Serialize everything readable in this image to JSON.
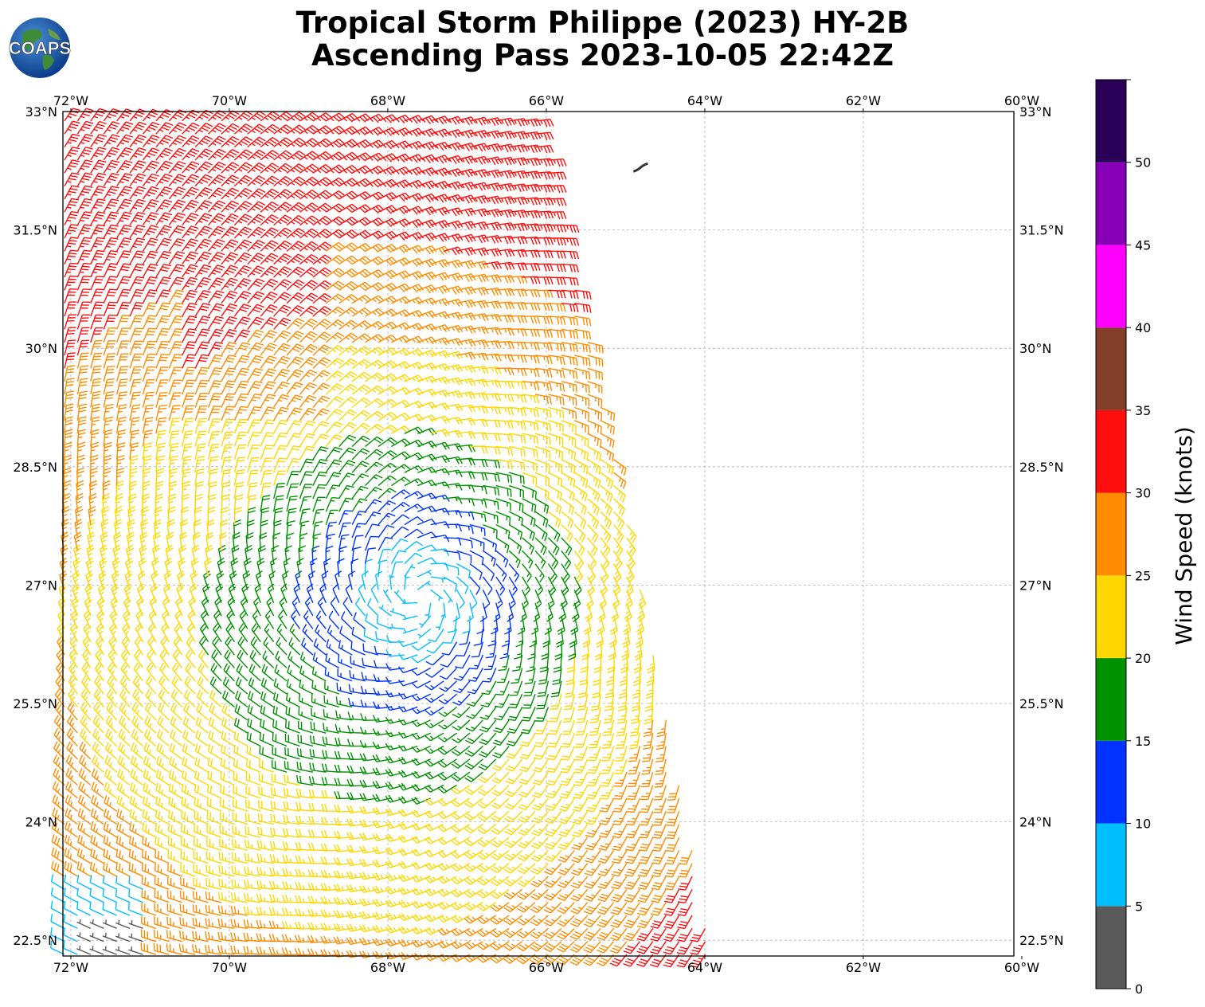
{
  "header": {
    "title_line1": "Tropical Storm Philippe (2023) HY-2B",
    "title_line2": "Ascending Pass 2023-10-05 22:42Z",
    "logo_text": "COAPS"
  },
  "map": {
    "lon_range": [
      -72.1,
      -60.1
    ],
    "lat_range": [
      22.3,
      33.0
    ],
    "lon_ticks": [
      {
        "value": -72,
        "label": "72°W"
      },
      {
        "value": -70,
        "label": "70°W"
      },
      {
        "value": -68,
        "label": "68°W"
      },
      {
        "value": -66,
        "label": "66°W"
      },
      {
        "value": -64,
        "label": "64°W"
      },
      {
        "value": -62,
        "label": "62°W"
      },
      {
        "value": -60,
        "label": "60°W"
      }
    ],
    "lat_ticks": [
      {
        "value": 33.0,
        "label": "33°N"
      },
      {
        "value": 31.5,
        "label": "31.5°N"
      },
      {
        "value": 30.0,
        "label": "30°N"
      },
      {
        "value": 28.5,
        "label": "28.5°N"
      },
      {
        "value": 27.0,
        "label": "27°N"
      },
      {
        "value": 25.5,
        "label": "25.5°N"
      },
      {
        "value": 24.0,
        "label": "24°N"
      },
      {
        "value": 22.5,
        "label": "22.5°N"
      }
    ],
    "gridlines": true,
    "storm_center": {
      "lon": -67.6,
      "lat": 26.85
    },
    "swath_east_edge": [
      {
        "lat": 33.0,
        "lon": -66.1
      },
      {
        "lat": 27.0,
        "lon": -64.8
      },
      {
        "lat": 22.3,
        "lon": -63.9
      }
    ],
    "land_feature": "Bermuda"
  },
  "colorbar": {
    "label": "Wind Speed (knots)",
    "ticks": [
      "0",
      "5",
      "10",
      "15",
      "20",
      "25",
      "30",
      "35",
      "40",
      "45",
      "50"
    ],
    "bins": [
      {
        "min": 0,
        "max": 5,
        "color": "#595959"
      },
      {
        "min": 5,
        "max": 10,
        "color": "#00bfff"
      },
      {
        "min": 10,
        "max": 15,
        "color": "#0033ff"
      },
      {
        "min": 15,
        "max": 20,
        "color": "#009100"
      },
      {
        "min": 20,
        "max": 25,
        "color": "#ffd700"
      },
      {
        "min": 25,
        "max": 30,
        "color": "#ff8c00"
      },
      {
        "min": 30,
        "max": 35,
        "color": "#ff0e0e"
      },
      {
        "min": 35,
        "max": 40,
        "color": "#813f2a"
      },
      {
        "min": 40,
        "max": 45,
        "color": "#ff00ff"
      },
      {
        "min": 45,
        "max": 50,
        "color": "#8700b8"
      },
      {
        "min": 50,
        "max": 55,
        "color": "#2a0058"
      }
    ]
  }
}
